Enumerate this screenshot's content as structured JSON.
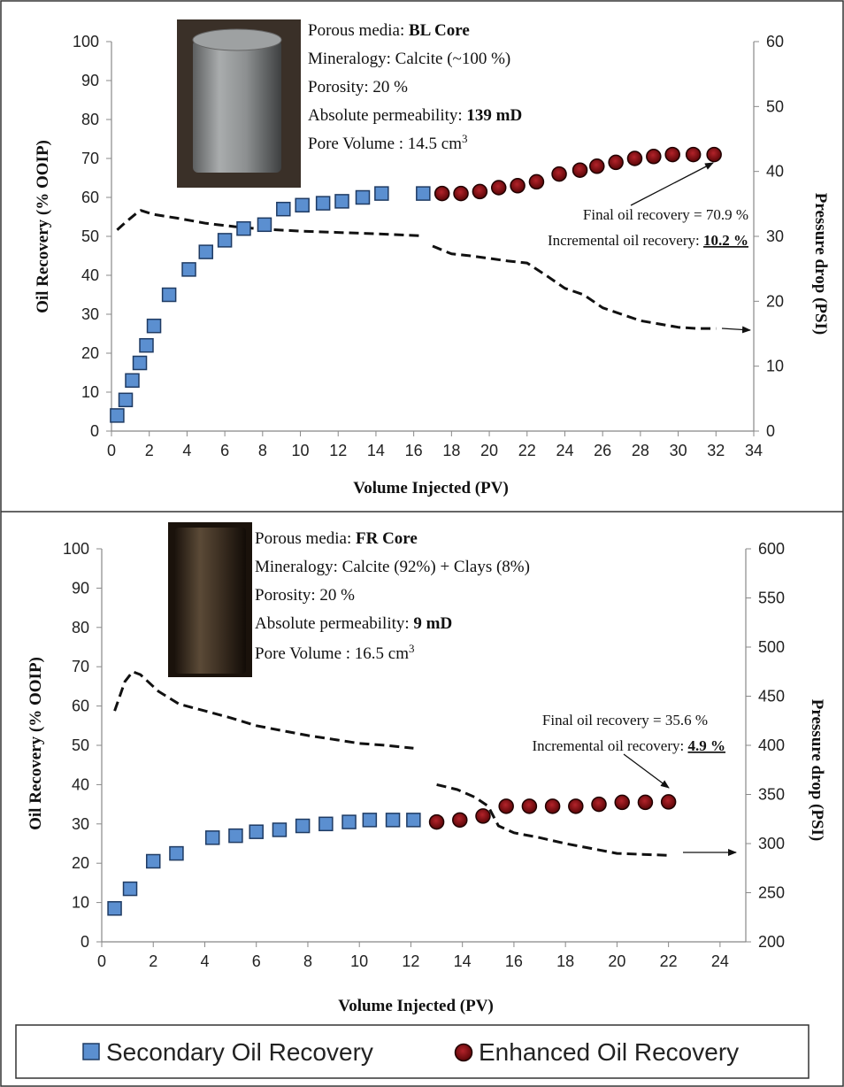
{
  "colors": {
    "secondary_marker": "#5b8fd0",
    "secondary_marker_edge": "#1f3b63",
    "enhanced_marker": "#7a0d10",
    "enhanced_marker_edge": "#200000",
    "pressure_line": "#111111"
  },
  "legend": {
    "secondary_label": "Secondary Oil Recovery",
    "enhanced_label": "Enhanced Oil Recovery"
  },
  "chart_data": [
    {
      "type": "scatter",
      "panel": "BL Core",
      "xlabel": "Volume Injected  (PV)",
      "ylabel": "Oil Recovery  (% OOIP)",
      "y2label": "Pressure drop  (PSI)",
      "xlim": [
        0,
        34
      ],
      "ylim": [
        0,
        100
      ],
      "y2lim": [
        0,
        60
      ],
      "x_ticks": [
        "0",
        "2",
        "4",
        "6",
        "8",
        "10",
        "12",
        "14",
        "16",
        "18",
        "20",
        "22",
        "24",
        "26",
        "28",
        "30",
        "32",
        "34"
      ],
      "y_ticks": [
        "0",
        "10",
        "20",
        "30",
        "40",
        "50",
        "60",
        "70",
        "80",
        "90",
        "100"
      ],
      "y2_ticks": [
        "0",
        "10",
        "20",
        "30",
        "40",
        "50",
        "60"
      ],
      "info": {
        "porous_media_label": "Porous media: ",
        "porous_media_value": "BL Core",
        "mineralogy": "Mineralogy: Calcite (~100 %)",
        "porosity": "Porosity: 20 %",
        "permeability_label": "Absolute permeability: ",
        "permeability_value": "139 mD",
        "pore_volume_label": "Pore Volume : 14.5 cm",
        "pore_volume_exp": "3"
      },
      "annotation": {
        "final": "Final oil recovery = 70.9 %",
        "incremental_label": "Incremental oil recovery: ",
        "incremental_value": "10.2 %"
      },
      "series": [
        {
          "name": "Secondary Oil Recovery",
          "x": [
            0.3,
            0.75,
            1.1,
            1.5,
            1.85,
            2.25,
            3.05,
            4.1,
            5.0,
            6.0,
            7.0,
            8.1,
            9.1,
            10.1,
            11.2,
            12.2,
            13.3,
            14.3,
            16.5
          ],
          "y": [
            4,
            8,
            13,
            17.5,
            22,
            27,
            35,
            41.5,
            46,
            49,
            52,
            53,
            57,
            58,
            58.5,
            59,
            60,
            61,
            61
          ]
        },
        {
          "name": "Enhanced Oil Recovery",
          "x": [
            17.5,
            18.5,
            19.5,
            20.5,
            21.5,
            22.5,
            23.7,
            24.8,
            25.7,
            26.7,
            27.7,
            28.7,
            29.7,
            30.8,
            31.9
          ],
          "y": [
            61,
            61,
            61.5,
            62.5,
            63,
            64,
            66,
            67,
            68,
            69,
            70,
            70.5,
            71,
            71,
            71
          ]
        },
        {
          "name": "Pressure drop",
          "axis": "y2",
          "x": [
            0.3,
            0.8,
            1.3,
            1.55,
            2.2,
            3.5,
            5,
            6.5,
            8,
            10,
            12,
            14,
            16.3
          ],
          "y": [
            31,
            32.3,
            33.5,
            34,
            33.4,
            32.8,
            32,
            31.5,
            31.1,
            30.8,
            30.6,
            30.4,
            30.1
          ]
        },
        {
          "name": "Pressure drop (EOR)",
          "axis": "y2",
          "x": [
            17,
            18,
            19,
            20,
            21,
            22,
            23,
            24,
            25,
            26,
            27,
            28,
            29,
            30,
            31,
            32
          ],
          "y": [
            28.5,
            27.3,
            27,
            26.6,
            26.2,
            25.9,
            24,
            22,
            21,
            19,
            18,
            17,
            16.5,
            16,
            15.8,
            15.8
          ]
        }
      ]
    },
    {
      "type": "scatter",
      "panel": "FR Core",
      "xlabel": "Volume Injected  (PV)",
      "ylabel": "Oil Recovery  (% OOIP)",
      "y2label": "Pressure drop  (PSI)",
      "xlim": [
        0,
        25
      ],
      "ylim": [
        0,
        100
      ],
      "y2lim": [
        200,
        600
      ],
      "x_ticks": [
        "0",
        "2",
        "4",
        "6",
        "8",
        "10",
        "12",
        "14",
        "16",
        "18",
        "20",
        "22",
        "24"
      ],
      "y_ticks": [
        "0",
        "10",
        "20",
        "30",
        "40",
        "50",
        "60",
        "70",
        "80",
        "90",
        "100"
      ],
      "y2_ticks": [
        "200",
        "250",
        "300",
        "350",
        "400",
        "450",
        "500",
        "550",
        "600"
      ],
      "info": {
        "porous_media_label": "Porous media: ",
        "porous_media_value": "FR Core",
        "mineralogy": "Mineralogy: Calcite (92%) + Clays (8%)",
        "porosity": "Porosity: 20 %",
        "permeability_label": "Absolute permeability: ",
        "permeability_value": "9 mD",
        "pore_volume_label": "Pore Volume : 16.5 cm",
        "pore_volume_exp": "3"
      },
      "annotation": {
        "final": "Final oil recovery = 35.6 %",
        "incremental_label": "Incremental oil recovery: ",
        "incremental_value": "4.9 %"
      },
      "series": [
        {
          "name": "Secondary Oil Recovery",
          "x": [
            0.5,
            1.1,
            2.0,
            2.9,
            4.3,
            5.2,
            6.0,
            6.9,
            7.8,
            8.7,
            9.6,
            10.4,
            11.3,
            12.1
          ],
          "y": [
            8.5,
            13.5,
            20.5,
            22.5,
            26.5,
            27,
            28,
            28.5,
            29.5,
            30,
            30.5,
            31,
            31,
            31
          ]
        },
        {
          "name": "Enhanced Oil Recovery",
          "x": [
            13.0,
            13.9,
            14.8,
            15.7,
            16.6,
            17.5,
            18.4,
            19.3,
            20.2,
            21.1,
            22.0
          ],
          "y": [
            30.5,
            31,
            32,
            34.5,
            34.5,
            34.5,
            34.5,
            35,
            35.5,
            35.5,
            35.6
          ]
        },
        {
          "name": "Pressure drop",
          "axis": "y2",
          "x": [
            0.5,
            0.9,
            1.2,
            1.5,
            2.2,
            3.0,
            4.0,
            5.0,
            6.0,
            7.0,
            8.0,
            9.0,
            10.0,
            11.0,
            12.1
          ],
          "y": [
            435,
            465,
            475,
            472,
            455,
            442,
            435,
            428,
            420,
            415,
            410,
            406,
            402,
            400,
            397
          ]
        },
        {
          "name": "Pressure drop (EOR)",
          "axis": "y2",
          "x": [
            13.0,
            13.8,
            14.5,
            15.0,
            15.4,
            16.0,
            17.0,
            18.0,
            19.0,
            20.0,
            21.0,
            22.0
          ],
          "y": [
            360,
            355,
            347,
            338,
            318,
            311,
            306,
            300,
            295,
            290,
            289,
            288
          ]
        }
      ]
    }
  ]
}
